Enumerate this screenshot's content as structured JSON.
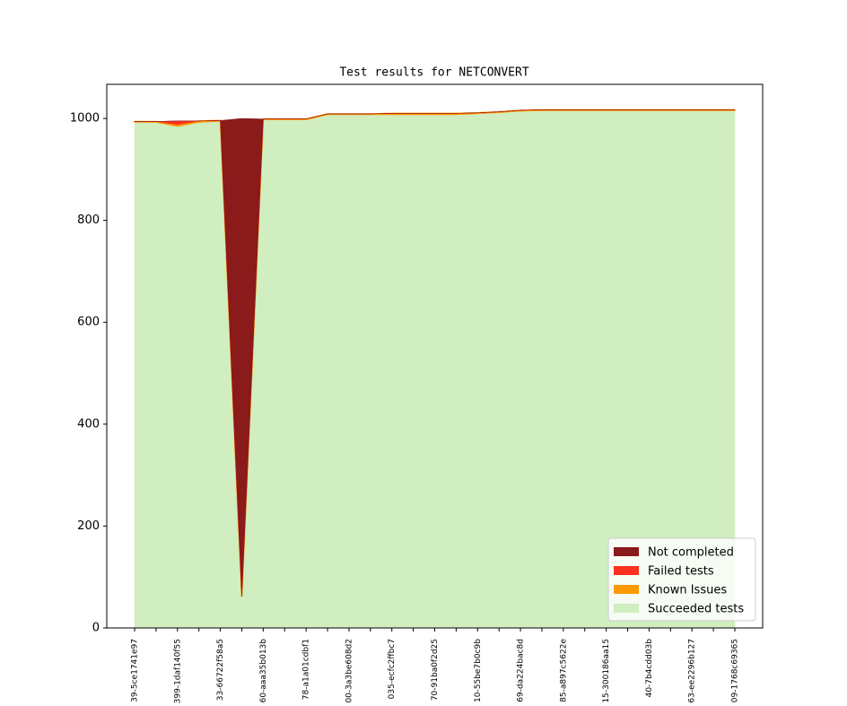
{
  "chart_data": {
    "type": "stackedarea",
    "title": "Test results for NETCONVERT",
    "categories": [
      "39-5ce1741e97",
      null,
      "399-1daf140f55",
      null,
      "33-66722f58a5",
      null,
      "60-aaa35b013b",
      null,
      "78-a1a01cdbf1",
      null,
      "00-3a3be608d2",
      null,
      "035-ecfc2ffbc7",
      null,
      "70-91ba0f2d25",
      null,
      "10-55be7b0c9b",
      null,
      "69-da224bac8d",
      null,
      "85-a897c5622e",
      null,
      "15-300186aa15",
      null,
      "40-7b4cdd03b",
      null,
      "63-ee2296b127",
      null,
      "09-1768c69365"
    ],
    "series": [
      {
        "name": "Succeeded tests",
        "color": "#d0eec0",
        "values": [
          993,
          993,
          985,
          993,
          995,
          62,
          998,
          998,
          998,
          1008,
          1008,
          1008,
          1008,
          1008,
          1008,
          1008,
          1010,
          1012,
          1015,
          1016,
          1016,
          1016,
          1016,
          1016,
          1016,
          1016,
          1016,
          1016,
          1016
        ]
      },
      {
        "name": "Known Issues",
        "color": "#ff9900",
        "values": [
          1,
          1,
          3,
          2,
          1,
          0,
          1,
          1,
          1,
          1,
          1,
          1,
          2,
          2,
          2,
          2,
          1,
          1,
          1,
          1,
          1,
          1,
          1,
          1,
          1,
          1,
          1,
          1,
          1
        ]
      },
      {
        "name": "Failed tests",
        "color": "#ff3020",
        "values": [
          0,
          0,
          7,
          0,
          0,
          0,
          0,
          0,
          0,
          0,
          0,
          0,
          0,
          0,
          0,
          0,
          0,
          0,
          0,
          0,
          0,
          0,
          0,
          0,
          0,
          0,
          0,
          0,
          0
        ]
      },
      {
        "name": "Not completed",
        "color": "#8b1a1a",
        "values": [
          0,
          0,
          0,
          0,
          0,
          938,
          0,
          0,
          0,
          0,
          0,
          0,
          0,
          0,
          0,
          0,
          0,
          0,
          0,
          0,
          0,
          0,
          0,
          0,
          0,
          0,
          0,
          0,
          0
        ]
      }
    ],
    "ylim": [
      0,
      1067
    ],
    "yticks": [
      0,
      200,
      400,
      600,
      800,
      1000
    ],
    "legend": "lower right"
  }
}
